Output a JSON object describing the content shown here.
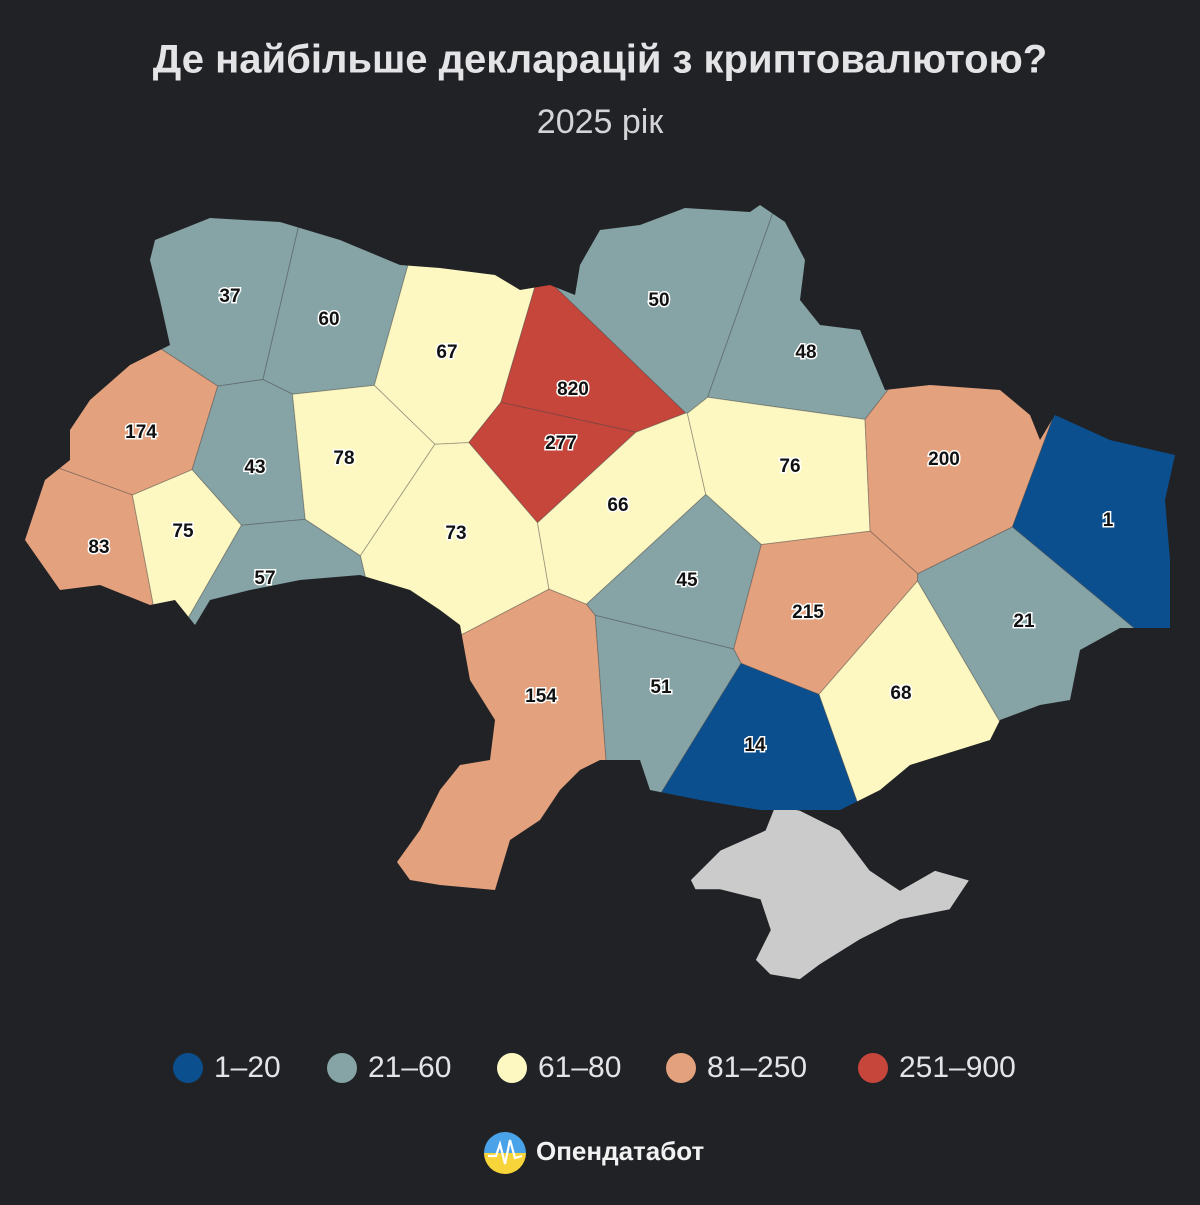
{
  "title": "Де найбільше декларацій з криптовалютою?",
  "subtitle": "2025 рік",
  "regions": [
    {
      "value": 37,
      "color": "#86a3a5"
    },
    {
      "value": 60,
      "color": "#86a3a5"
    },
    {
      "value": 67,
      "color": "#fdf8c1"
    },
    {
      "value": 820,
      "color": "#c6463b"
    },
    {
      "value": 277,
      "color": "#c6463b"
    },
    {
      "value": 50,
      "color": "#86a3a5"
    },
    {
      "value": 48,
      "color": "#86a3a5"
    },
    {
      "value": 174,
      "color": "#e3a17d"
    },
    {
      "value": 43,
      "color": "#86a3a5"
    },
    {
      "value": 78,
      "color": "#fdf8c1"
    },
    {
      "value": 73,
      "color": "#fdf8c1"
    },
    {
      "value": 66,
      "color": "#fdf8c1"
    },
    {
      "value": 76,
      "color": "#fdf8c1"
    },
    {
      "value": 200,
      "color": "#e3a17d"
    },
    {
      "value": 1,
      "color": "#0b4f8f"
    },
    {
      "value": 83,
      "color": "#e3a17d"
    },
    {
      "value": 75,
      "color": "#fdf8c1"
    },
    {
      "value": 57,
      "color": "#86a3a5"
    },
    {
      "value": 45,
      "color": "#86a3a5"
    },
    {
      "value": 215,
      "color": "#e3a17d"
    },
    {
      "value": 21,
      "color": "#86a3a5"
    },
    {
      "value": 154,
      "color": "#e3a17d"
    },
    {
      "value": 51,
      "color": "#86a3a5"
    },
    {
      "value": 68,
      "color": "#fdf8c1"
    },
    {
      "value": 14,
      "color": "#0b4f8f"
    }
  ],
  "legend": [
    {
      "label": "1–20",
      "color": "#0b4f8f"
    },
    {
      "label": "21–60",
      "color": "#86a3a5"
    },
    {
      "label": "61–80",
      "color": "#fdf8c1"
    },
    {
      "label": "81–250",
      "color": "#e3a17d"
    },
    {
      "label": "251–900",
      "color": "#c6463b"
    }
  ],
  "brand": "Опендатабот"
}
